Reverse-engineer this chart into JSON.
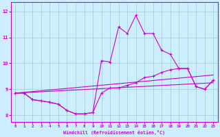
{
  "xlabel": "Windchill (Refroidissement éolien,°C)",
  "background_color": "#cceeff",
  "line_color": "#cc00cc",
  "xlim": [
    -0.5,
    23.5
  ],
  "ylim": [
    7.75,
    12.35
  ],
  "xticks": [
    0,
    1,
    2,
    3,
    4,
    5,
    6,
    7,
    8,
    9,
    10,
    11,
    12,
    13,
    14,
    15,
    16,
    17,
    18,
    19,
    20,
    21,
    22,
    23
  ],
  "yticks": [
    8,
    9,
    10,
    11,
    12
  ],
  "line1_x": [
    0,
    1,
    2,
    3,
    4,
    5,
    6,
    7,
    8,
    9,
    10,
    11,
    12,
    13,
    14,
    15,
    16,
    17,
    18,
    19,
    20,
    21,
    22,
    23
  ],
  "line1_y": [
    8.85,
    8.85,
    8.6,
    8.55,
    8.5,
    8.42,
    8.18,
    8.05,
    8.05,
    8.1,
    8.85,
    9.05,
    9.05,
    9.15,
    9.25,
    9.45,
    9.5,
    9.65,
    9.75,
    9.8,
    9.8,
    9.1,
    9.0,
    9.35
  ],
  "line2_x": [
    0,
    1,
    2,
    3,
    4,
    5,
    6,
    7,
    8,
    9,
    10,
    11,
    12,
    13,
    14,
    15,
    16,
    17,
    18,
    19,
    20,
    21,
    22,
    23
  ],
  "line2_y": [
    8.85,
    8.85,
    8.6,
    8.55,
    8.5,
    8.42,
    8.18,
    8.05,
    8.05,
    8.1,
    10.1,
    10.05,
    11.4,
    11.15,
    11.85,
    11.15,
    11.15,
    10.5,
    10.35,
    9.8,
    9.8,
    9.1,
    9.0,
    9.35
  ],
  "line3_x": [
    0,
    23
  ],
  "line3_y": [
    8.85,
    9.25
  ],
  "line4_x": [
    0,
    23
  ],
  "line4_y": [
    8.85,
    9.55
  ],
  "grid_color": "#99cccc",
  "marker": "+"
}
